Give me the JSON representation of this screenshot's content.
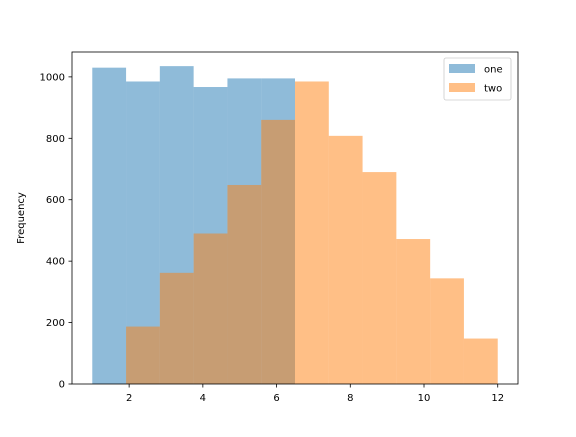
{
  "chart_data": {
    "type": "histogram",
    "title": "",
    "xlabel": "",
    "ylabel": "Frequency",
    "xlim": [
      0.45,
      12.55
    ],
    "ylim": [
      0,
      1081
    ],
    "xticks": [
      2,
      4,
      6,
      8,
      10,
      12
    ],
    "yticks": [
      0,
      200,
      400,
      600,
      800,
      1000
    ],
    "grid": false,
    "legend_position": "top-right",
    "series": [
      {
        "name": "one",
        "color": "#1f77b4",
        "alpha": 0.5,
        "bins": [
          {
            "x0": 1.0,
            "x1": 1.917,
            "count": 1030
          },
          {
            "x0": 1.917,
            "x1": 2.833,
            "count": 985
          },
          {
            "x0": 2.833,
            "x1": 3.75,
            "count": 1035
          },
          {
            "x0": 3.75,
            "x1": 4.667,
            "count": 967
          },
          {
            "x0": 4.667,
            "x1": 5.583,
            "count": 995
          },
          {
            "x0": 5.583,
            "x1": 6.5,
            "count": 995
          }
        ]
      },
      {
        "name": "two",
        "color": "#ff7f0e",
        "alpha": 0.5,
        "bins": [
          {
            "x0": 1.917,
            "x1": 2.833,
            "count": 187
          },
          {
            "x0": 2.833,
            "x1": 3.75,
            "count": 362
          },
          {
            "x0": 3.75,
            "x1": 4.667,
            "count": 490
          },
          {
            "x0": 4.667,
            "x1": 5.583,
            "count": 648
          },
          {
            "x0": 5.583,
            "x1": 6.5,
            "count": 860
          },
          {
            "x0": 6.5,
            "x1": 7.417,
            "count": 985
          },
          {
            "x0": 7.417,
            "x1": 8.333,
            "count": 808
          },
          {
            "x0": 8.333,
            "x1": 9.25,
            "count": 690
          },
          {
            "x0": 9.25,
            "x1": 10.167,
            "count": 472
          },
          {
            "x0": 10.167,
            "x1": 11.083,
            "count": 344
          },
          {
            "x0": 11.083,
            "x1": 12.0,
            "count": 148
          }
        ]
      }
    ]
  }
}
